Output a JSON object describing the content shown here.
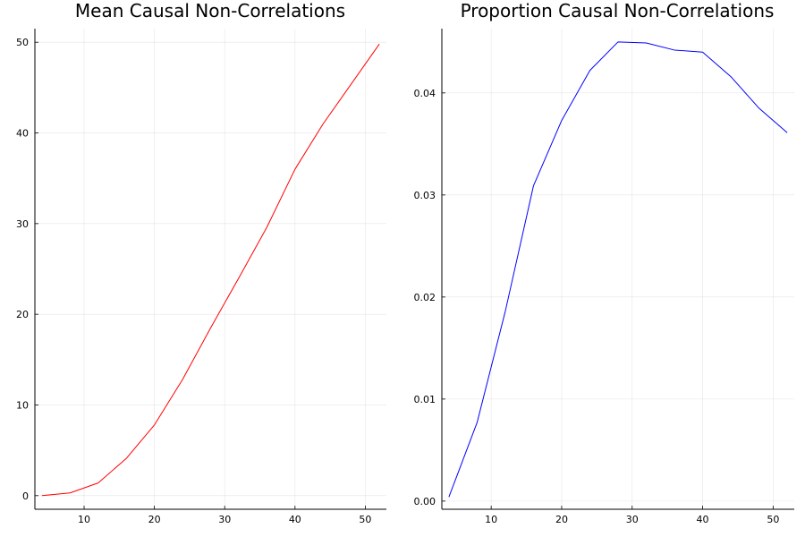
{
  "chart_data": [
    {
      "type": "line",
      "title": "Mean Causal Non-Correlations",
      "xlabel": "",
      "ylabel": "",
      "grid": true,
      "legend": "none",
      "xlim": [
        3,
        53
      ],
      "ylim": [
        -1.5,
        51.5
      ],
      "xticks": [
        10,
        20,
        30,
        40,
        50
      ],
      "yticks": [
        0,
        10,
        20,
        30,
        40,
        50
      ],
      "x": [
        4,
        8,
        12,
        16,
        20,
        24,
        28,
        32,
        36,
        40,
        44,
        48,
        52
      ],
      "series": [
        {
          "color": "#ff0000",
          "values": [
            0.0,
            0.3,
            1.4,
            4.1,
            7.8,
            12.8,
            18.5,
            24.0,
            29.6,
            36.0,
            41.0,
            45.4,
            49.8
          ]
        }
      ]
    },
    {
      "type": "line",
      "title": "Proportion Causal Non-Correlations",
      "xlabel": "",
      "ylabel": "",
      "grid": true,
      "legend": "none",
      "xlim": [
        3,
        53
      ],
      "ylim": [
        -0.0008,
        0.0463
      ],
      "xticks": [
        10,
        20,
        30,
        40,
        50
      ],
      "yticks": [
        0.0,
        0.01,
        0.02,
        0.03,
        0.04
      ],
      "ytick_labels": [
        "0.00",
        "0.01",
        "0.02",
        "0.03",
        "0.04"
      ],
      "x": [
        4,
        8,
        12,
        16,
        20,
        24,
        28,
        32,
        36,
        40,
        44,
        48,
        52
      ],
      "series": [
        {
          "color": "#0000ff",
          "values": [
            0.0004,
            0.0077,
            0.0186,
            0.0309,
            0.0373,
            0.0422,
            0.045,
            0.0449,
            0.0442,
            0.044,
            0.0416,
            0.0385,
            0.0361
          ]
        }
      ]
    }
  ]
}
